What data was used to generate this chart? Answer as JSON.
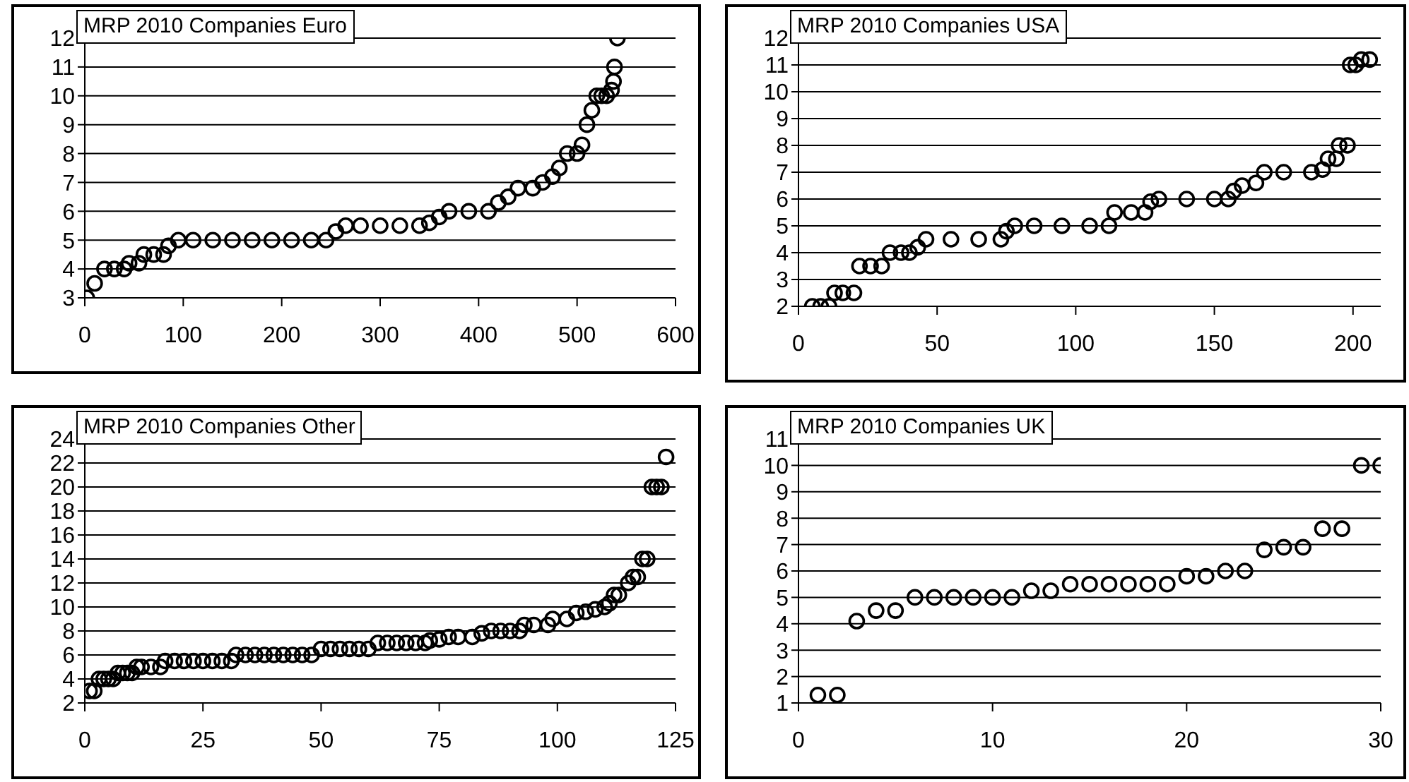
{
  "chart_data": [
    {
      "type": "scatter",
      "title": "MRP 2010 Companies Euro",
      "color": "#000000",
      "marker": "circle",
      "grid": "y",
      "xlim": [
        0,
        600
      ],
      "xticks": [
        0,
        100,
        200,
        300,
        400,
        500,
        600
      ],
      "ylim": [
        3,
        12
      ],
      "yticks": [
        3,
        4,
        5,
        6,
        7,
        8,
        9,
        10,
        11,
        12
      ],
      "x": [
        2,
        10,
        20,
        30,
        40,
        45,
        55,
        60,
        70,
        80,
        85,
        95,
        110,
        130,
        150,
        170,
        190,
        210,
        230,
        245,
        255,
        265,
        280,
        300,
        320,
        340,
        350,
        360,
        370,
        390,
        410,
        420,
        430,
        440,
        455,
        465,
        475,
        482,
        490,
        500,
        505,
        510,
        515,
        520,
        525,
        530,
        535,
        537,
        538,
        541
      ],
      "values": [
        3,
        3.5,
        4,
        4,
        4,
        4.2,
        4.2,
        4.5,
        4.5,
        4.5,
        4.8,
        5,
        5,
        5,
        5,
        5,
        5,
        5,
        5,
        5,
        5.3,
        5.5,
        5.5,
        5.5,
        5.5,
        5.5,
        5.6,
        5.8,
        6,
        6,
        6,
        6.3,
        6.5,
        6.8,
        6.8,
        7,
        7.2,
        7.5,
        8,
        8,
        8.3,
        9,
        9.5,
        10,
        10,
        10,
        10.2,
        10.5,
        11,
        12
      ]
    },
    {
      "type": "scatter",
      "title": "MRP 2010 Companies USA",
      "color": "#000000",
      "marker": "circle",
      "grid": "y",
      "xlim": [
        0,
        210
      ],
      "xticks": [
        0,
        50,
        100,
        150,
        200
      ],
      "ylim": [
        2,
        12
      ],
      "yticks": [
        2,
        3,
        4,
        5,
        6,
        7,
        8,
        9,
        10,
        11,
        12
      ],
      "x": [
        5,
        8,
        11,
        13,
        16,
        20,
        22,
        26,
        30,
        33,
        37,
        40,
        43,
        46,
        55,
        65,
        73,
        75,
        78,
        85,
        95,
        105,
        112,
        114,
        120,
        125,
        127,
        130,
        140,
        150,
        155,
        157,
        160,
        165,
        168,
        175,
        185,
        189,
        191,
        194,
        195,
        198,
        199,
        201,
        203,
        206
      ],
      "values": [
        2,
        2,
        2,
        2.5,
        2.5,
        2.5,
        3.5,
        3.5,
        3.5,
        4,
        4,
        4,
        4.2,
        4.5,
        4.5,
        4.5,
        4.5,
        4.8,
        5,
        5,
        5,
        5,
        5,
        5.5,
        5.5,
        5.5,
        5.9,
        6,
        6,
        6,
        6,
        6.3,
        6.5,
        6.6,
        7,
        7,
        7,
        7.1,
        7.5,
        7.5,
        8,
        8,
        11,
        11,
        11.2,
        11.2
      ]
    },
    {
      "type": "scatter",
      "title": "MRP 2010 Companies Other",
      "color": "#000000",
      "marker": "circle",
      "grid": "y",
      "xlim": [
        0,
        125
      ],
      "xticks": [
        0,
        25,
        50,
        75,
        100,
        125
      ],
      "ylim": [
        2,
        24
      ],
      "yticks": [
        2,
        4,
        6,
        8,
        10,
        12,
        14,
        16,
        18,
        20,
        22,
        24
      ],
      "x": [
        1,
        2,
        3,
        4,
        5,
        6,
        7,
        8,
        9,
        10,
        11,
        12,
        14,
        16,
        17,
        19,
        21,
        23,
        25,
        27,
        29,
        31,
        32,
        34,
        36,
        38,
        40,
        42,
        44,
        46,
        48,
        50,
        52,
        54,
        56,
        58,
        60,
        62,
        64,
        66,
        68,
        70,
        72,
        73,
        75,
        77,
        79,
        82,
        84,
        86,
        88,
        90,
        92,
        93,
        95,
        98,
        99,
        102,
        104,
        106,
        108,
        110,
        111,
        112,
        113,
        115,
        116,
        117,
        118,
        119,
        120,
        121,
        122,
        123
      ],
      "values": [
        3,
        3,
        4,
        4,
        4,
        4,
        4.5,
        4.5,
        4.5,
        4.5,
        5,
        5,
        5,
        5,
        5.5,
        5.5,
        5.5,
        5.5,
        5.5,
        5.5,
        5.5,
        5.5,
        6,
        6,
        6,
        6,
        6,
        6,
        6,
        6,
        6,
        6.5,
        6.5,
        6.5,
        6.5,
        6.5,
        6.5,
        7,
        7,
        7,
        7,
        7,
        7,
        7.2,
        7.3,
        7.5,
        7.5,
        7.5,
        7.8,
        8,
        8,
        8,
        8,
        8.5,
        8.5,
        8.5,
        9,
        9,
        9.5,
        9.6,
        9.8,
        10,
        10.3,
        11,
        11,
        12,
        12.5,
        12.5,
        14,
        14,
        20,
        20,
        20,
        22.5
      ]
    },
    {
      "type": "scatter",
      "title": "MRP 2010 Companies UK",
      "color": "#000000",
      "marker": "circle",
      "grid": "y",
      "xlim": [
        0,
        30
      ],
      "xticks": [
        0,
        10,
        20,
        30
      ],
      "ylim": [
        1,
        11
      ],
      "yticks": [
        1,
        2,
        3,
        4,
        5,
        6,
        7,
        8,
        9,
        10,
        11
      ],
      "x": [
        1,
        2,
        3,
        4,
        5,
        6,
        7,
        8,
        9,
        10,
        11,
        12,
        13,
        14,
        15,
        16,
        17,
        18,
        19,
        20,
        21,
        22,
        23,
        24,
        25,
        26,
        27,
        28,
        29,
        30
      ],
      "values": [
        1.3,
        1.3,
        4.1,
        4.5,
        4.5,
        5,
        5,
        5,
        5,
        5,
        5,
        5.25,
        5.25,
        5.5,
        5.5,
        5.5,
        5.5,
        5.5,
        5.5,
        5.8,
        5.8,
        6,
        6,
        6.8,
        6.9,
        6.9,
        7.6,
        7.6,
        10,
        10
      ]
    }
  ]
}
